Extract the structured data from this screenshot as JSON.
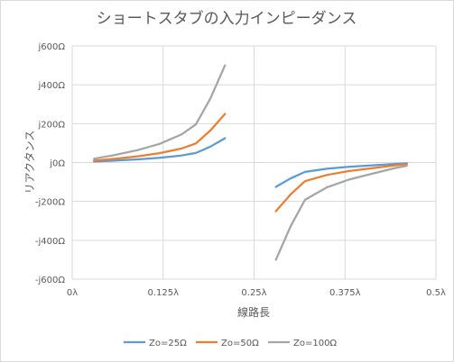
{
  "chart_data": {
    "type": "line",
    "title": "ショートスタブの入力インピーダンス",
    "xlabel": "線路長",
    "ylabel": "リアクタンス",
    "xlim": [
      0,
      0.5
    ],
    "ylim": [
      -600,
      600
    ],
    "x_ticks": [
      {
        "value": 0,
        "label": "0λ"
      },
      {
        "value": 0.125,
        "label": "0.125λ"
      },
      {
        "value": 0.25,
        "label": "0.25λ"
      },
      {
        "value": 0.375,
        "label": "0.375λ"
      },
      {
        "value": 0.5,
        "label": "0.5λ"
      }
    ],
    "y_ticks": [
      {
        "value": 600,
        "label": "j600Ω"
      },
      {
        "value": 400,
        "label": "j400Ω"
      },
      {
        "value": 200,
        "label": "j200Ω"
      },
      {
        "value": 0,
        "label": "j0Ω"
      },
      {
        "value": -200,
        "label": "-j200Ω"
      },
      {
        "value": -400,
        "label": "-j400Ω"
      },
      {
        "value": -600,
        "label": "-j600Ω"
      }
    ],
    "grid": true,
    "legend_position": "bottom",
    "series": [
      {
        "name": "Zo=25Ω",
        "color": "#5b9bd5",
        "segments": [
          {
            "x": [
              0.03,
              0.06,
              0.09,
              0.12,
              0.15,
              0.17,
              0.19,
              0.21
            ],
            "y": [
              5,
              10,
              16,
              24,
              36,
              49,
              82,
              125
            ]
          },
          {
            "x": [
              0.28,
              0.3,
              0.32,
              0.35,
              0.38,
              0.41,
              0.44,
              0.46
            ],
            "y": [
              -125,
              -82,
              -48,
              -32,
              -22,
              -15,
              -8,
              -4
            ]
          }
        ]
      },
      {
        "name": "Zo=50Ω",
        "color": "#ed7d31",
        "segments": [
          {
            "x": [
              0.03,
              0.06,
              0.09,
              0.12,
              0.15,
              0.17,
              0.19,
              0.21
            ],
            "y": [
              10,
              20,
              32,
              48,
              72,
              98,
              165,
              250
            ]
          },
          {
            "x": [
              0.28,
              0.3,
              0.32,
              0.35,
              0.38,
              0.41,
              0.44,
              0.46
            ],
            "y": [
              -250,
              -165,
              -96,
              -64,
              -44,
              -30,
              -16,
              -8
            ]
          }
        ]
      },
      {
        "name": "Zo=100Ω",
        "color": "#a5a5a5",
        "segments": [
          {
            "x": [
              0.03,
              0.06,
              0.09,
              0.12,
              0.15,
              0.17,
              0.19,
              0.21
            ],
            "y": [
              20,
              40,
              64,
              96,
              144,
              196,
              330,
              500
            ]
          },
          {
            "x": [
              0.28,
              0.3,
              0.32,
              0.35,
              0.38,
              0.41,
              0.44,
              0.46
            ],
            "y": [
              -500,
              -330,
              -192,
              -128,
              -88,
              -60,
              -32,
              -16
            ]
          }
        ]
      }
    ]
  }
}
